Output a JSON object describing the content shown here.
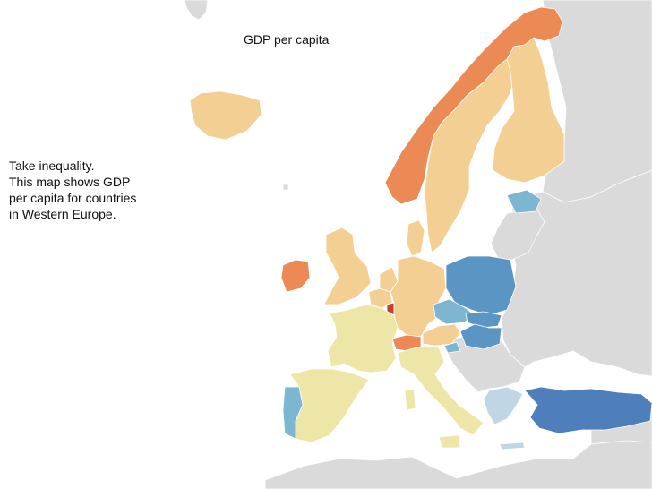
{
  "map": {
    "title": "GDP per capita",
    "caption": [
      "Take inequality.",
      "This map shows GDP",
      "per capita for countries",
      "in Western Europe."
    ],
    "colors": {
      "no_data": "#dadada",
      "high": "#ec8a55",
      "very_high": "#c24036",
      "upper_mid": "#f4cf94",
      "mid": "#eee6a6",
      "low": "#7db6d1",
      "lower": "#5b95c3",
      "lowest": "#4f7fba",
      "greece": "#bfd6e4"
    },
    "countries": [
      {
        "name": "Norway",
        "class": "high"
      },
      {
        "name": "Sweden",
        "class": "upper_mid"
      },
      {
        "name": "Finland",
        "class": "upper_mid"
      },
      {
        "name": "Iceland",
        "class": "upper_mid"
      },
      {
        "name": "United Kingdom",
        "class": "upper_mid"
      },
      {
        "name": "Ireland",
        "class": "high"
      },
      {
        "name": "Denmark",
        "class": "upper_mid"
      },
      {
        "name": "Netherlands",
        "class": "upper_mid"
      },
      {
        "name": "Belgium",
        "class": "upper_mid"
      },
      {
        "name": "Luxembourg",
        "class": "very_high"
      },
      {
        "name": "Germany",
        "class": "upper_mid"
      },
      {
        "name": "France",
        "class": "mid"
      },
      {
        "name": "Switzerland",
        "class": "high"
      },
      {
        "name": "Austria",
        "class": "upper_mid"
      },
      {
        "name": "Italy",
        "class": "mid"
      },
      {
        "name": "Spain",
        "class": "mid"
      },
      {
        "name": "Portugal",
        "class": "low"
      },
      {
        "name": "Estonia",
        "class": "low"
      },
      {
        "name": "Poland",
        "class": "lower"
      },
      {
        "name": "Czech Republic",
        "class": "low"
      },
      {
        "name": "Slovakia",
        "class": "lower"
      },
      {
        "name": "Hungary",
        "class": "lower"
      },
      {
        "name": "Slovenia",
        "class": "low"
      },
      {
        "name": "Greece",
        "class": "greece"
      },
      {
        "name": "Turkey",
        "class": "lowest"
      }
    ]
  }
}
